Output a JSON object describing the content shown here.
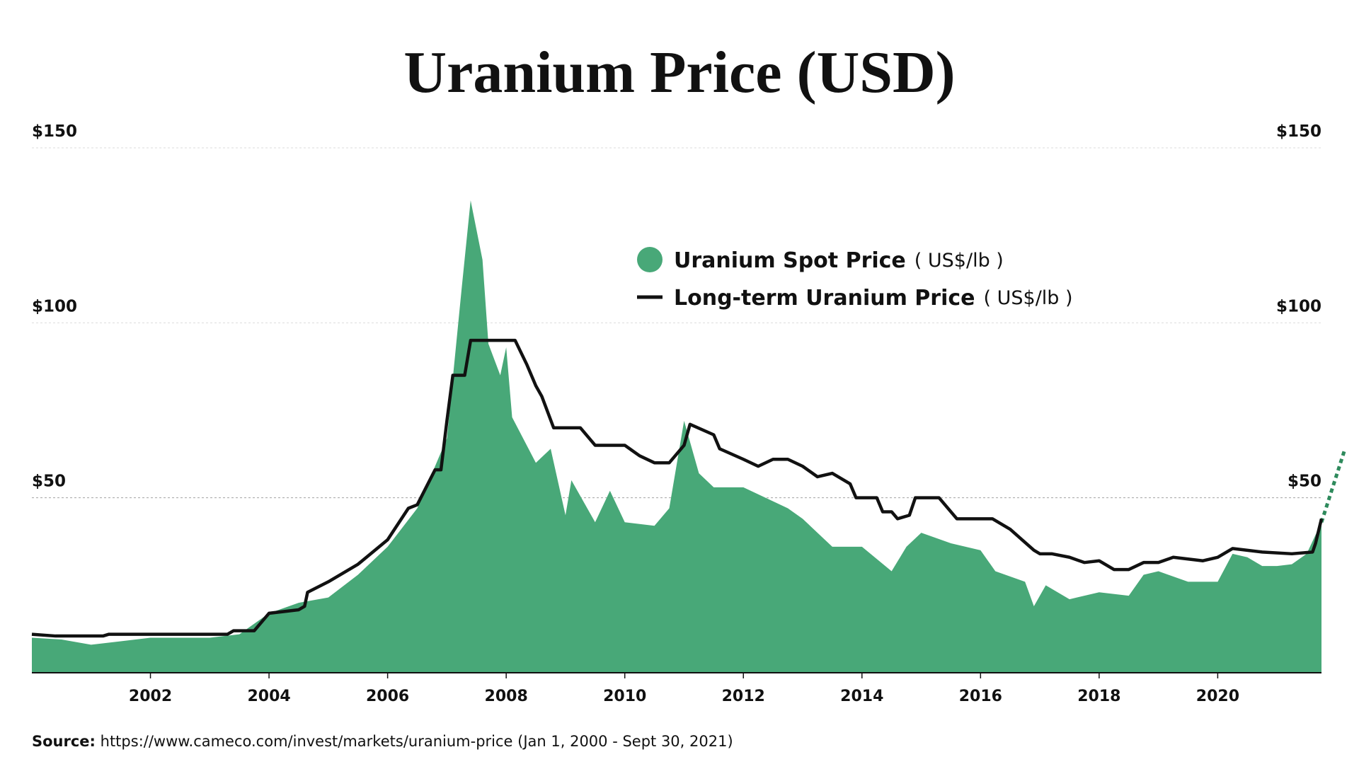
{
  "chart_data": {
    "type": "area_line",
    "title": "Uranium Price (USD)",
    "source": {
      "label": "Source:",
      "text": "https://www.cameco.com/invest/markets/uranium-price (Jan 1, 2000 - Sept 30, 2021)"
    },
    "xlim": [
      2000,
      2021.75
    ],
    "xticks": [
      2002,
      2004,
      2006,
      2008,
      2010,
      2012,
      2014,
      2016,
      2018,
      2020
    ],
    "ylim": [
      0,
      150
    ],
    "yticks": [
      {
        "value": 50,
        "label": "$50"
      },
      {
        "value": 100,
        "label": "$100"
      },
      {
        "value": 150,
        "label": "$150"
      }
    ],
    "grid": true,
    "series": [
      {
        "name": "Uranium Spot Price",
        "unit": "( US$/lb )",
        "color": "#48a878",
        "style": "area",
        "x": [
          2000,
          2000.5,
          2001,
          2001.5,
          2002,
          2003,
          2003.5,
          2004,
          2004.5,
          2005,
          2005.5,
          2006,
          2006.5,
          2007,
          2007.25,
          2007.4,
          2007.6,
          2007.7,
          2007.9,
          2008,
          2008.1,
          2008.5,
          2008.75,
          2009,
          2009.1,
          2009.5,
          2009.75,
          2010,
          2010.5,
          2010.75,
          2011,
          2011.25,
          2011.5,
          2012,
          2012.5,
          2012.75,
          2013,
          2013.5,
          2014,
          2014.5,
          2014.75,
          2015,
          2015.5,
          2016,
          2016.25,
          2016.75,
          2016.9,
          2017.1,
          2017.5,
          2018,
          2018.5,
          2018.75,
          2019,
          2019.5,
          2020,
          2020.25,
          2020.5,
          2020.75,
          2021,
          2021.25,
          2021.5,
          2021.75
        ],
        "values": [
          10,
          9.5,
          8,
          9,
          10,
          10,
          11,
          17,
          20,
          21.5,
          28,
          36,
          47,
          67,
          110,
          135,
          118,
          94,
          85,
          93,
          73,
          60,
          64,
          45,
          55,
          43,
          52,
          43,
          42,
          47,
          72,
          57,
          53,
          53,
          49,
          47,
          44,
          36,
          36,
          29,
          36,
          40,
          37,
          35,
          29,
          26,
          19,
          25,
          21,
          23,
          22,
          28,
          29,
          26,
          26,
          34,
          33,
          30.5,
          30.5,
          31,
          34,
          43
        ]
      },
      {
        "name": "Long-term Uranium Price",
        "unit": "( US$/lb )",
        "color": "#111111",
        "style": "line",
        "x": [
          2000,
          2000.4,
          2001.2,
          2001.3,
          2003.3,
          2003.4,
          2003.75,
          2004,
          2004.5,
          2004.6,
          2004.65,
          2005,
          2005.5,
          2006,
          2006.35,
          2006.5,
          2006.8,
          2006.9,
          2007,
          2007.1,
          2007.3,
          2007.4,
          2008.15,
          2008.35,
          2008.5,
          2008.6,
          2008.8,
          2009.25,
          2009.5,
          2010,
          2010.25,
          2010.5,
          2010.75,
          2011,
          2011.1,
          2011.5,
          2011.6,
          2012,
          2012.25,
          2012.5,
          2012.75,
          2013,
          2013.25,
          2013.5,
          2013.8,
          2013.9,
          2014.25,
          2014.35,
          2014.5,
          2014.6,
          2014.8,
          2014.9,
          2015.3,
          2015.6,
          2016.2,
          2016.5,
          2016.7,
          2016.9,
          2017,
          2017.2,
          2017.5,
          2017.75,
          2018,
          2018.25,
          2018.5,
          2018.75,
          2019,
          2019.25,
          2019.5,
          2019.75,
          2020,
          2020.25,
          2020.5,
          2020.75,
          2021.25,
          2021.6,
          2021.65,
          2021.75
        ],
        "values": [
          11,
          10.5,
          10.5,
          11,
          11,
          12,
          12,
          17,
          18,
          19,
          23,
          26,
          31,
          38,
          47,
          48,
          58,
          58,
          72,
          85,
          85,
          95,
          95,
          88,
          82,
          79,
          70,
          70,
          65,
          65,
          62,
          60,
          60,
          65,
          71,
          68,
          64,
          61,
          59,
          61,
          61,
          59,
          56,
          57,
          54,
          50,
          50,
          46,
          46,
          44,
          45,
          50,
          50,
          44,
          44,
          41,
          38,
          35,
          34,
          34,
          33,
          31.5,
          32,
          29.5,
          29.5,
          31.5,
          31.5,
          33,
          32.5,
          32,
          33,
          35.5,
          35,
          34.5,
          34,
          34.5,
          37,
          44
        ]
      }
    ]
  }
}
